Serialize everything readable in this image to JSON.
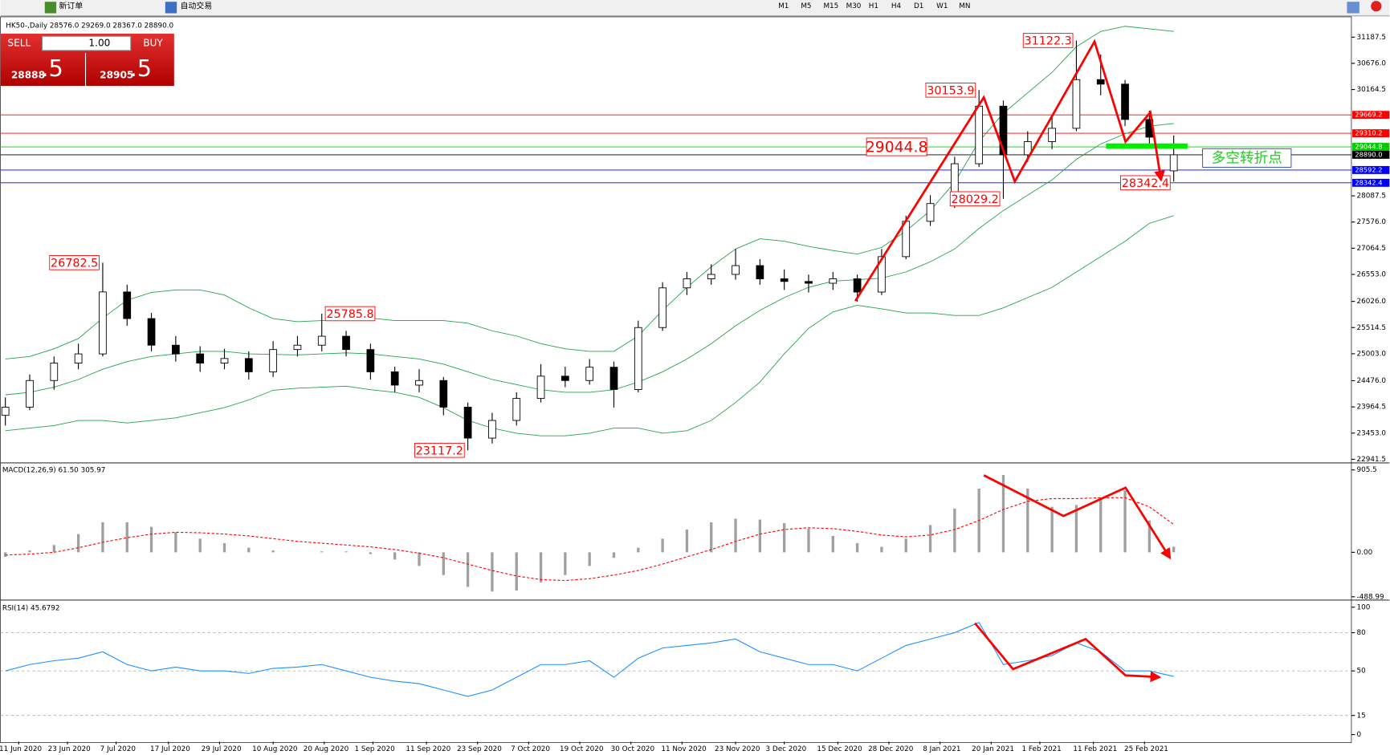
{
  "toolbar": {
    "new_order": "新订单",
    "auto_trade": "自动交易",
    "timeframes": [
      "M1",
      "M5",
      "M15",
      "M30",
      "H1",
      "H4",
      "D1",
      "W1",
      "MN"
    ]
  },
  "trade_panel": {
    "sell": "SELL",
    "buy": "BUY",
    "lot": "1.00",
    "sell_price": "28888",
    "sell_pips": ".5",
    "buy_price": "28905",
    "buy_pips": ".5"
  },
  "chart_data": [
    {
      "type": "candlestick",
      "title": "HK50-,Daily 28576.0 29269.0 28367.0 28890.0",
      "xlim": [
        -0.2,
        55.3
      ],
      "ylim": [
        22905,
        31533
      ],
      "xticks": [
        {
          "value": 0.55,
          "label": "11 Jun 2020"
        },
        {
          "value": 2.55,
          "label": "23 Jun 2020"
        },
        {
          "value": 4.55,
          "label": "7 Jul 2020"
        },
        {
          "value": 6.7,
          "label": "17 Jul 2020"
        },
        {
          "value": 8.8,
          "label": "29 Jul 2020"
        },
        {
          "value": 11,
          "label": "10 Aug 2020"
        },
        {
          "value": 13.1,
          "label": "20 Aug 2020"
        },
        {
          "value": 15.1,
          "label": "1 Sep 2020"
        },
        {
          "value": 17.3,
          "label": "11 Sep 2020"
        },
        {
          "value": 19.4,
          "label": "23 Sep 2020"
        },
        {
          "value": 21.5,
          "label": "7 Oct 2020"
        },
        {
          "value": 23.6,
          "label": "19 Oct 2020"
        },
        {
          "value": 25.7,
          "label": "30 Oct 2020"
        },
        {
          "value": 27.8,
          "label": "11 Nov 2020"
        },
        {
          "value": 30,
          "label": "23 Nov 2020"
        },
        {
          "value": 32,
          "label": "3 Dec 2020"
        },
        {
          "value": 34.2,
          "label": "15 Dec 2020"
        },
        {
          "value": 36.3,
          "label": "28 Dec 2020"
        },
        {
          "value": 38.4,
          "label": "8 Jan 2021"
        },
        {
          "value": 40.5,
          "label": "20 Jan 2021"
        },
        {
          "value": 42.5,
          "label": "1 Feb 2021"
        },
        {
          "value": 44.7,
          "label": "11 Feb 2021"
        },
        {
          "value": 46.8,
          "label": "25 Feb 2021"
        }
      ],
      "yticks": [
        31187.5,
        {
          "value": 30676,
          "label": "30676.0"
        },
        30164.5,
        28087.5,
        {
          "value": 27576,
          "label": "27576.0"
        },
        27064.5,
        {
          "value": 26553,
          "label": "26553.0"
        },
        {
          "value": 26026,
          "label": "26026.0"
        },
        25514.5,
        {
          "value": 25003,
          "label": "25003.0"
        },
        {
          "value": 24476,
          "label": "24476.0"
        },
        23964.5,
        {
          "value": 23453,
          "label": "23453.0"
        },
        22941.5
      ],
      "open": [
        23800,
        23960,
        24480,
        24820,
        25000,
        26210,
        25690,
        25170,
        25000,
        24820,
        24910,
        24650,
        25085,
        25170,
        25345,
        25085,
        24650,
        24390,
        24480,
        23960,
        23355,
        23700,
        24130,
        24565,
        24480,
        24740,
        24305,
        25515,
        26290,
        26467,
        26553,
        26725,
        26467,
        26415,
        26380,
        26467,
        26208,
        26900,
        27590,
        27937,
        28715,
        29840,
        28890,
        29147,
        29407,
        30358,
        30270,
        29580,
        28576
      ],
      "high": [
        24150,
        24600,
        24950,
        25200,
        26782.5,
        26350,
        25800,
        25350,
        25150,
        25100,
        25050,
        25250,
        25350,
        25785.8,
        25450,
        25200,
        24750,
        24700,
        24550,
        24050,
        23850,
        24250,
        24800,
        24750,
        24900,
        24850,
        25650,
        26400,
        26600,
        26750,
        27050,
        26850,
        26650,
        26550,
        26600,
        26550,
        27050,
        27700,
        28100,
        28850,
        30153.9,
        29950,
        29350,
        29650,
        31122.3,
        30850,
        30350,
        29750,
        29269
      ],
      "low": [
        23600,
        23900,
        24300,
        24700,
        24950,
        25550,
        25050,
        24850,
        24650,
        24700,
        24500,
        24550,
        24950,
        25050,
        24950,
        24500,
        24250,
        24250,
        23800,
        23117.2,
        23250,
        23600,
        24050,
        24350,
        24400,
        23950,
        24250,
        25450,
        26150,
        26350,
        26450,
        26350,
        26250,
        26200,
        26250,
        26020,
        26150,
        26850,
        27500,
        27850,
        28650,
        28029.2,
        28750,
        29000,
        29350,
        30050,
        29450,
        29050,
        28367
      ],
      "close": [
        23960,
        24480,
        24820,
        25000,
        26210,
        25690,
        25170,
        25000,
        24820,
        24910,
        24650,
        25085,
        25170,
        25345,
        25085,
        24650,
        24390,
        24480,
        23960,
        23355,
        23700,
        24130,
        24565,
        24480,
        24740,
        24305,
        25515,
        26290,
        26467,
        26553,
        26725,
        26467,
        26415,
        26380,
        26467,
        26208,
        26900,
        27590,
        27937,
        28715,
        29840,
        28890,
        29147,
        29407,
        30358,
        30270,
        29580,
        29234,
        28890
      ],
      "bands": [
        {
          "color": "#22a34a",
          "values": [
            24900,
            24950,
            25100,
            25300,
            25700,
            26050,
            26200,
            26250,
            26250,
            26150,
            25900,
            25690,
            25630,
            25650,
            25670,
            25700,
            25650,
            25650,
            25650,
            25600,
            25450,
            25350,
            25200,
            25100,
            25050,
            25050,
            25350,
            25850,
            26300,
            26700,
            27050,
            27250,
            27200,
            27100,
            27020,
            26950,
            27080,
            27400,
            27800,
            28350,
            29150,
            29700,
            30100,
            30500,
            31000,
            31300,
            31400,
            31350,
            31300
          ]
        },
        {
          "color": "#22a34a",
          "values": [
            24200,
            24250,
            24350,
            24500,
            24700,
            24850,
            24950,
            25000,
            25050,
            25050,
            25000,
            24990,
            24980,
            25000,
            25020,
            25000,
            24950,
            24900,
            24800,
            24650,
            24500,
            24400,
            24300,
            24250,
            24250,
            24300,
            24450,
            24650,
            24900,
            25200,
            25550,
            25850,
            26100,
            26300,
            26420,
            26450,
            26480,
            26600,
            26800,
            27050,
            27450,
            27800,
            28100,
            28400,
            28800,
            29100,
            29300,
            29450,
            29500
          ]
        },
        {
          "color": "#22a34a",
          "values": [
            23500,
            23550,
            23600,
            23700,
            23700,
            23650,
            23700,
            23750,
            23850,
            23950,
            24100,
            24290,
            24330,
            24350,
            24370,
            24300,
            24250,
            24150,
            23950,
            23700,
            23550,
            23450,
            23400,
            23400,
            23450,
            23550,
            23550,
            23450,
            23500,
            23700,
            24050,
            24450,
            25000,
            25500,
            25820,
            25950,
            25880,
            25800,
            25800,
            25750,
            25750,
            25900,
            26100,
            26300,
            26600,
            26900,
            27200,
            27550,
            27700
          ]
        }
      ],
      "levels": [
        {
          "value": 29669.2,
          "color": "#ff0000"
        },
        {
          "value": 29310.2,
          "color": "#ff0000"
        },
        {
          "value": 29044.8,
          "color": "#00cc00"
        },
        {
          "value": 28890,
          "label": "28890.0",
          "color": "#000000"
        },
        {
          "value": 28592.2,
          "color": "#0000ff"
        },
        {
          "value": 28342.4,
          "color": "#0000ff"
        }
      ],
      "annotations": [
        {
          "value": 26782.5,
          "at": 4,
          "anchor": "left"
        },
        {
          "value": 25785.8,
          "at": 13,
          "anchor": "right"
        },
        {
          "value": 23117.2,
          "at": 19,
          "anchor": "left"
        },
        {
          "value": 30153.9,
          "at": 40,
          "anchor": "left"
        },
        {
          "value": 31122.3,
          "at": 44,
          "anchor": "left"
        },
        {
          "value": 28029.2,
          "at": 41,
          "anchor": "left"
        },
        {
          "value": 28342.4,
          "at": 48,
          "anchor": "left"
        },
        {
          "value": 29044.8,
          "at": 38,
          "anchor": "left",
          "size": "large"
        }
      ],
      "note": "多空转折点"
    },
    {
      "type": "macd",
      "title": "MACD(12,26,9) 61.50 305.97",
      "ylim": [
        -506,
        963
      ],
      "yticks": [
        905.5,
        {
          "value": 0,
          "label": "0.00"
        },
        -488.99
      ],
      "series": [
        {
          "color": "#a0a0a0",
          "values": [
            -50,
            20,
            80,
            200,
            330,
            330,
            280,
            220,
            150,
            100,
            50,
            20,
            0,
            10,
            10,
            -20,
            -80,
            -150,
            -250,
            -380,
            -430,
            -420,
            -330,
            -250,
            -150,
            -60,
            50,
            150,
            250,
            330,
            370,
            360,
            320,
            260,
            180,
            100,
            60,
            150,
            300,
            480,
            700,
            850,
            700,
            500,
            520,
            600,
            680,
            350,
            61.5
          ]
        },
        {
          "color": "#ff0000",
          "values": [
            -30,
            -20,
            0,
            50,
            110,
            160,
            200,
            220,
            215,
            200,
            180,
            150,
            120,
            100,
            80,
            60,
            30,
            -10,
            -60,
            -130,
            -200,
            -260,
            -300,
            -310,
            -290,
            -250,
            -200,
            -130,
            -50,
            30,
            120,
            200,
            250,
            270,
            260,
            230,
            190,
            170,
            190,
            250,
            350,
            470,
            560,
            590,
            590,
            600,
            600,
            500,
            305.97
          ]
        }
      ]
    },
    {
      "type": "line",
      "title": "RSI(14) 45.6792",
      "ylim": [
        -5.6,
        104.2
      ],
      "yticks": [
        100,
        80,
        50,
        15,
        0
      ],
      "color": "#1e90ff",
      "values": [
        50,
        55,
        58,
        60,
        65,
        55,
        50,
        53,
        50,
        50,
        48,
        52,
        53,
        55,
        50,
        45,
        42,
        40,
        35,
        30,
        35,
        45,
        55,
        55,
        58,
        45,
        60,
        68,
        70,
        72,
        75,
        65,
        60,
        55,
        55,
        50,
        60,
        70,
        75,
        80,
        88,
        55,
        58,
        62,
        72,
        65,
        50,
        50,
        45.6792
      ]
    }
  ]
}
